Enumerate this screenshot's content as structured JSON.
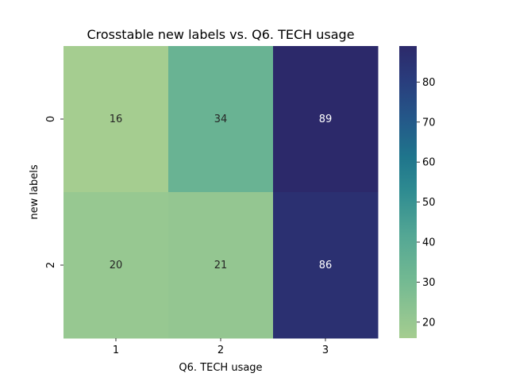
{
  "chart_data": {
    "type": "heatmap",
    "title": "Crosstable new labels vs. Q6. TECH usage",
    "xlabel": "Q6. TECH usage",
    "ylabel": "new labels",
    "x_categories": [
      "1",
      "2",
      "3"
    ],
    "y_categories": [
      "0",
      "2"
    ],
    "values": [
      [
        16,
        34,
        89
      ],
      [
        20,
        21,
        86
      ]
    ],
    "colorbar": {
      "range": [
        16,
        89
      ],
      "ticks": [
        "20",
        "30",
        "40",
        "50",
        "60",
        "70",
        "80"
      ],
      "colormap": "crest",
      "low_color": "#a5cf91",
      "high_color": "#2c2d6b"
    }
  }
}
